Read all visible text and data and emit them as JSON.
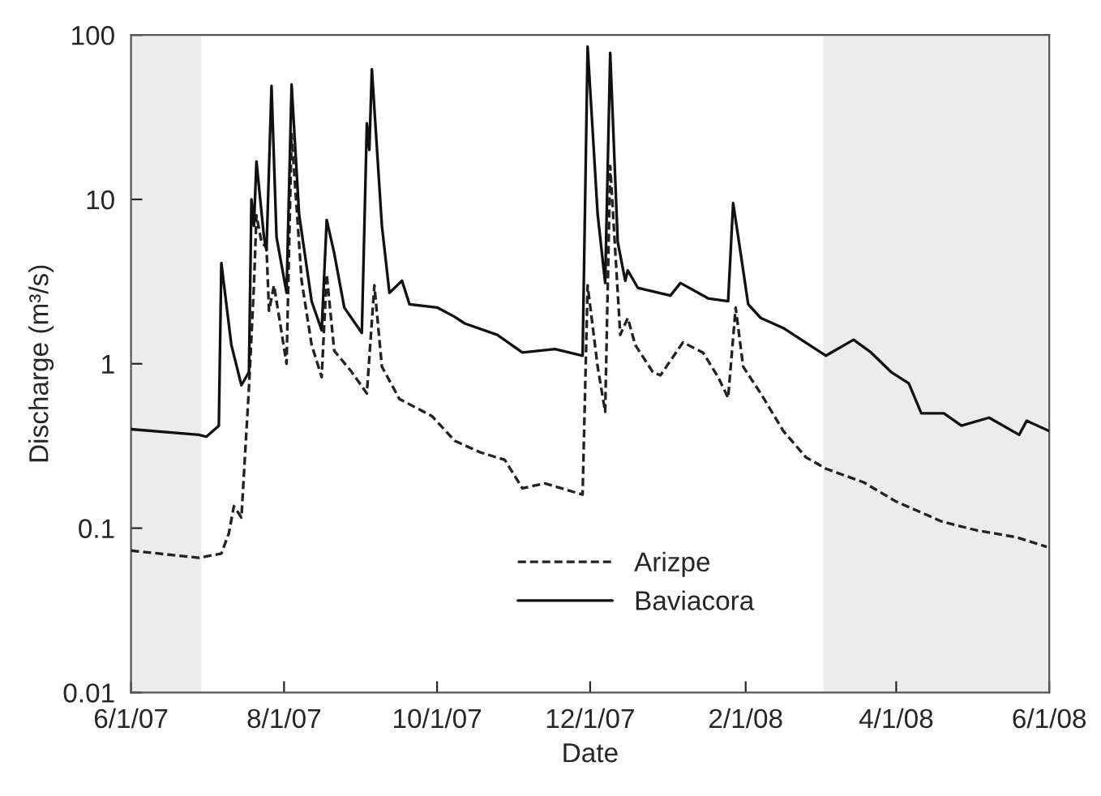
{
  "chart_data": {
    "type": "line",
    "xlabel": "Date",
    "ylabel": "Discharge (m³/s)",
    "log": "y",
    "ylim": [
      0.01,
      100
    ],
    "yticks": [
      {
        "value": 0.01,
        "label": "0.01"
      },
      {
        "value": 0.1,
        "label": "0.1"
      },
      {
        "value": 1,
        "label": "1"
      },
      {
        "value": 10,
        "label": "10"
      },
      {
        "value": 100,
        "label": "100"
      }
    ],
    "xlim": [
      "2007-06-01",
      "2008-06-01"
    ],
    "xticks": [
      {
        "value": "2007-06-01",
        "label": "6/1/07"
      },
      {
        "value": "2007-08-01",
        "label": "8/1/07"
      },
      {
        "value": "2007-10-01",
        "label": "10/1/07"
      },
      {
        "value": "2007-12-01",
        "label": "12/1/07"
      },
      {
        "value": "2008-02-01",
        "label": "2/1/08"
      },
      {
        "value": "2008-04-01",
        "label": "4/1/08"
      },
      {
        "value": "2008-06-01",
        "label": "6/1/08"
      }
    ],
    "grid": false,
    "legend": "bottom",
    "bands": [
      {
        "axis": "x",
        "from": "2007-06-01",
        "to": "2007-06-29",
        "color": "#ececec"
      },
      {
        "axis": "x",
        "from": "2008-03-03",
        "to": "2008-06-01",
        "color": "#ececec"
      }
    ],
    "series": [
      {
        "name": "Arizpe",
        "color": "#222222",
        "line_style": "dashed",
        "x": [
          "2007-06-01",
          "2007-06-28",
          "2007-07-07",
          "2007-07-10",
          "2007-07-12",
          "2007-07-15",
          "2007-07-18",
          "2007-07-20",
          "2007-07-21",
          "2007-07-23",
          "2007-07-25",
          "2007-07-26",
          "2007-07-28",
          "2007-08-02",
          "2007-08-04",
          "2007-08-08",
          "2007-08-12",
          "2007-08-16",
          "2007-08-18",
          "2007-08-21",
          "2007-08-28",
          "2007-09-03",
          "2007-09-06",
          "2007-09-09",
          "2007-09-16",
          "2007-09-29",
          "2007-10-08",
          "2007-10-18",
          "2007-10-28",
          "2007-11-04",
          "2007-11-13",
          "2007-11-28",
          "2007-11-30",
          "2007-12-04",
          "2007-12-07",
          "2007-12-09",
          "2007-12-13",
          "2007-12-16",
          "2007-12-19",
          "2007-12-26",
          "2007-12-29",
          "2008-01-07",
          "2008-01-15",
          "2008-01-21",
          "2008-01-25",
          "2008-01-28",
          "2008-01-31",
          "2008-02-07",
          "2008-02-16",
          "2008-02-25",
          "2008-03-04",
          "2008-03-19",
          "2008-04-01",
          "2008-04-19",
          "2008-05-03",
          "2008-05-19",
          "2008-05-31"
        ],
        "values": [
          0.073,
          0.066,
          0.07,
          0.093,
          0.136,
          0.116,
          0.71,
          3.0,
          8,
          5.5,
          5.1,
          2.1,
          3.0,
          1.0,
          25,
          3.2,
          1.3,
          0.83,
          3.5,
          1.2,
          0.89,
          0.66,
          3.0,
          0.96,
          0.61,
          0.48,
          0.34,
          0.29,
          0.26,
          0.175,
          0.187,
          0.16,
          3.0,
          0.96,
          0.51,
          16,
          1.5,
          1.9,
          1.3,
          0.89,
          0.85,
          1.35,
          1.17,
          0.83,
          0.62,
          2.2,
          0.96,
          0.66,
          0.39,
          0.27,
          0.23,
          0.19,
          0.145,
          0.11,
          0.097,
          0.088,
          0.077
        ]
      },
      {
        "name": "Baviacora",
        "color": "#111111",
        "line_style": "solid",
        "x": [
          "2007-06-01",
          "2007-06-28",
          "2007-07-01",
          "2007-07-06",
          "2007-07-07",
          "2007-07-11",
          "2007-07-15",
          "2007-07-18",
          "2007-07-19",
          "2007-07-20",
          "2007-07-21",
          "2007-07-24",
          "2007-07-25",
          "2007-07-27",
          "2007-07-29",
          "2007-08-02",
          "2007-08-04",
          "2007-08-07",
          "2007-08-12",
          "2007-08-16",
          "2007-08-18",
          "2007-08-21",
          "2007-08-25",
          "2007-09-01",
          "2007-09-03",
          "2007-09-04",
          "2007-09-05",
          "2007-09-09",
          "2007-09-12",
          "2007-09-17",
          "2007-09-20",
          "2007-10-01",
          "2007-10-08",
          "2007-10-12",
          "2007-10-25",
          "2007-11-04",
          "2007-11-17",
          "2007-11-28",
          "2007-11-30",
          "2007-12-04",
          "2007-12-07",
          "2007-12-09",
          "2007-12-12",
          "2007-12-15",
          "2007-12-16",
          "2007-12-20",
          "2008-01-02",
          "2008-01-06",
          "2008-01-17",
          "2008-01-25",
          "2008-01-27",
          "2008-01-30",
          "2008-02-02",
          "2008-02-07",
          "2008-02-16",
          "2008-03-02",
          "2008-03-04",
          "2008-03-15",
          "2008-03-22",
          "2008-03-30",
          "2008-04-06",
          "2008-04-11",
          "2008-04-20",
          "2008-04-27",
          "2008-05-08",
          "2008-05-20",
          "2008-05-23",
          "2008-06-01"
        ],
        "values": [
          0.4,
          0.37,
          0.36,
          0.42,
          4.1,
          1.3,
          0.74,
          0.89,
          10,
          6.9,
          17,
          5.9,
          4.9,
          49,
          5.9,
          2.7,
          50,
          8.1,
          2.4,
          1.6,
          7.5,
          4.7,
          2.2,
          1.54,
          29,
          20,
          62,
          6.9,
          2.7,
          3.2,
          2.3,
          2.2,
          1.93,
          1.76,
          1.5,
          1.17,
          1.23,
          1.12,
          85,
          8.1,
          3.1,
          78,
          5.5,
          3.2,
          3.7,
          2.9,
          2.6,
          3.1,
          2.5,
          2.4,
          9.5,
          4.7,
          2.3,
          1.9,
          1.65,
          1.17,
          1.12,
          1.4,
          1.17,
          0.89,
          0.76,
          0.5,
          0.5,
          0.42,
          0.47,
          0.37,
          0.45,
          0.39
        ]
      }
    ]
  }
}
